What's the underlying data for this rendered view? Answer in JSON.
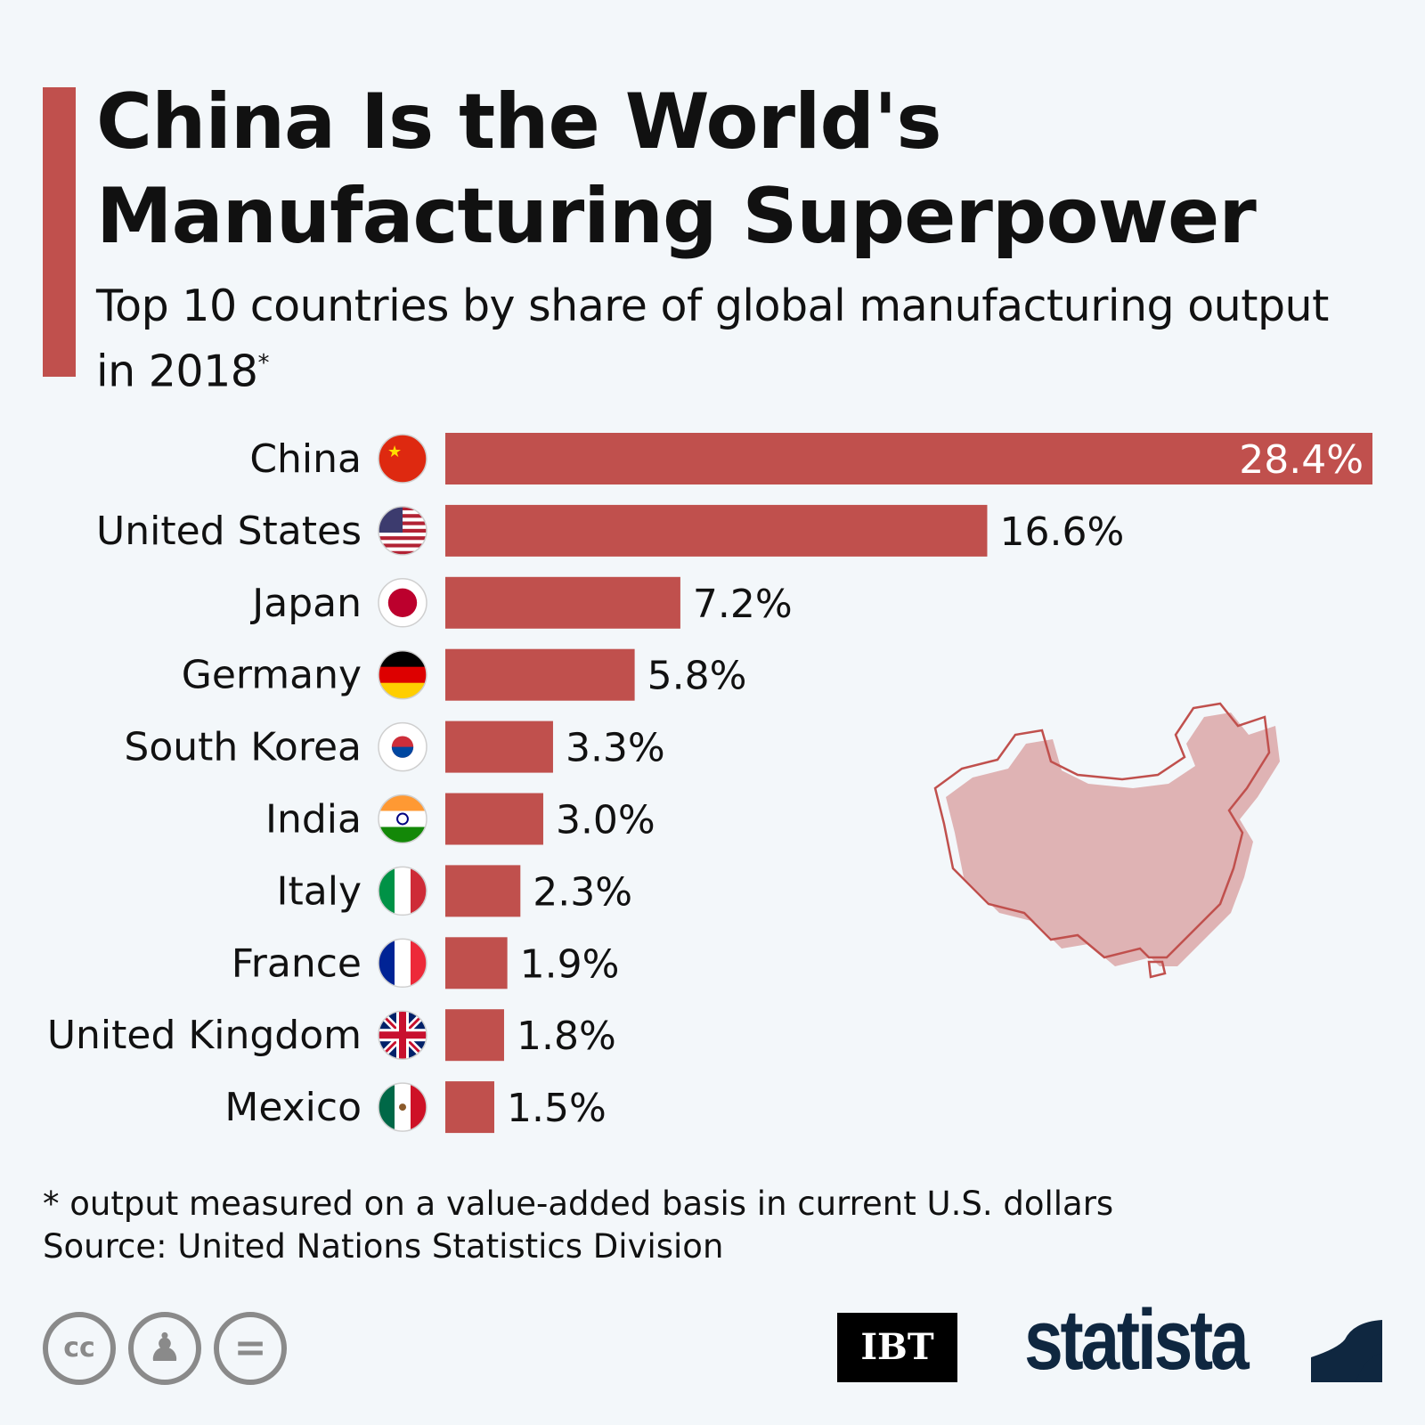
{
  "header": {
    "title": "China Is the World's Manufacturing Superpower",
    "subtitle": "Top 10 countries by share of global manufacturing output in 2018",
    "subtitle_mark": "*"
  },
  "colors": {
    "accent": "#c0504d",
    "bar": "#c0504d",
    "map_fill": "#dfb3b4",
    "map_stroke": "#c0504d",
    "statista": "#0f2740"
  },
  "chart_data": {
    "type": "bar",
    "orientation": "horizontal",
    "title": "",
    "xlabel": "",
    "ylabel": "",
    "xlim": [
      0,
      28.4
    ],
    "grid": false,
    "categories": [
      "China",
      "United States",
      "Japan",
      "Germany",
      "South Korea",
      "India",
      "Italy",
      "France",
      "United Kingdom",
      "Mexico"
    ],
    "values": [
      28.4,
      16.6,
      7.2,
      5.8,
      3.3,
      3.0,
      2.3,
      1.9,
      1.8,
      1.5
    ],
    "value_labels": [
      "28.4%",
      "16.6%",
      "7.2%",
      "5.8%",
      "3.3%",
      "3.0%",
      "2.3%",
      "1.9%",
      "1.8%",
      "1.5%"
    ],
    "flag_icons": [
      "china-flag",
      "usa-flag",
      "japan-flag",
      "germany-flag",
      "south-korea-flag",
      "india-flag",
      "italy-flag",
      "france-flag",
      "uk-flag",
      "mexico-flag"
    ]
  },
  "footer": {
    "note": "* output measured on a value-added basis in current U.S. dollars",
    "source": "Source: United Nations Statistics Division",
    "license_icons": [
      "cc-icon",
      "attribution-icon",
      "no-derivatives-icon"
    ],
    "cc_text": "cc",
    "ibt_logo": "IBT",
    "statista_logo": "statista"
  }
}
